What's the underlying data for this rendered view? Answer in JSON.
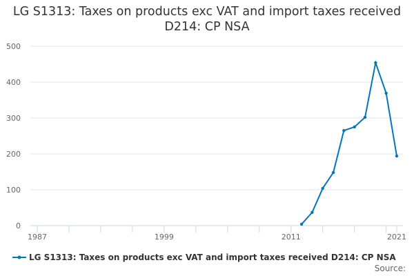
{
  "chart_data": {
    "type": "line",
    "title": "LG S1313: Taxes on products exc VAT and import taxes received D214: CP NSA",
    "xlabel": "",
    "ylabel": "",
    "x": [
      2012,
      2013,
      2014,
      2015,
      2016,
      2017,
      2018,
      2019,
      2020,
      2021
    ],
    "series": [
      {
        "name": "LG S1313: Taxes on products exc VAT and import taxes received D214: CP NSA",
        "values": [
          4,
          37,
          104,
          148,
          265,
          275,
          302,
          454,
          369,
          194
        ]
      }
    ],
    "xlim": [
      1987,
      2021
    ],
    "ylim": [
      0,
      500
    ],
    "xticks": [
      1987,
      1999,
      2011,
      2021
    ],
    "yticks": [
      0,
      100,
      200,
      300,
      400,
      500
    ],
    "grid": true,
    "legend": "bottom",
    "color": "#0077bb"
  },
  "source_label": "Source:"
}
